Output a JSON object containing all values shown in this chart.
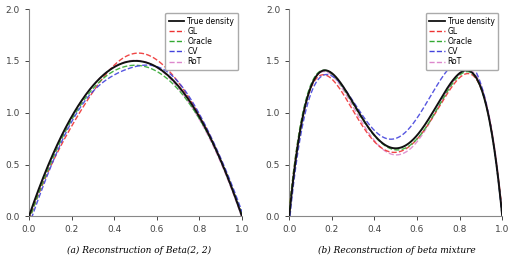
{
  "title_a": "(a) Reconstruction of Beta(2, 2)",
  "title_b": "(b) Reconstruction of beta mixture",
  "legend_labels": [
    "True density",
    "GL",
    "Oracle",
    "CV",
    "RoT"
  ],
  "legend_colors": [
    "#111111",
    "#ee3333",
    "#33aa33",
    "#4444dd",
    "#dd88cc"
  ],
  "xlim": [
    0.0,
    1.0
  ],
  "ylim_a": [
    0.0,
    2.0
  ],
  "ylim_b": [
    0.0,
    2.0
  ],
  "xticks": [
    0.0,
    0.2,
    0.4,
    0.6,
    0.8,
    1.0
  ],
  "yticks": [
    0.0,
    0.5,
    1.0,
    1.5,
    2.0
  ],
  "figsize": [
    5.15,
    2.58
  ],
  "dpi": 100,
  "lw_true": 1.4,
  "lw_est": 1.0
}
